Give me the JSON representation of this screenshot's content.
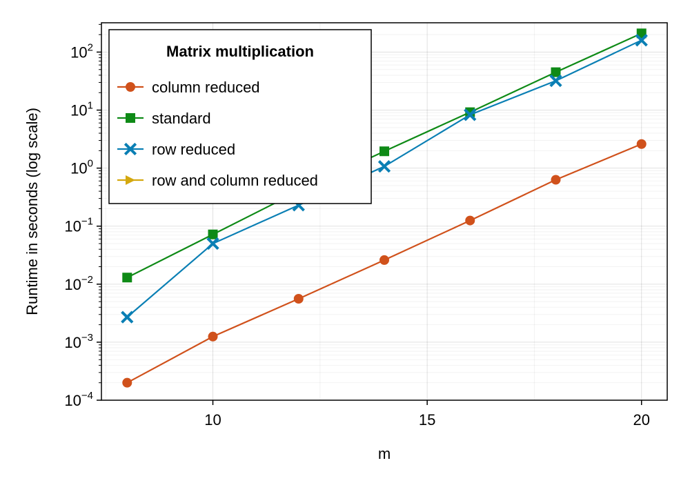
{
  "chart_data": {
    "type": "line",
    "title": "",
    "xlabel": "m",
    "ylabel": "Runtime in seconds (log scale)",
    "xlim": [
      7.4,
      20.6
    ],
    "ylim": [
      0.0001,
      320
    ],
    "yscale": "log",
    "x_ticks": [
      10,
      15,
      20
    ],
    "y_ticks": [
      0.0001,
      0.001,
      0.01,
      0.1,
      1,
      10,
      100
    ],
    "grid": true,
    "legend": {
      "title": "Matrix multiplication",
      "placement": "top-left"
    },
    "series": [
      {
        "name": "column reduced",
        "color": "#d0511b",
        "marker": "circle",
        "x": [
          8,
          10,
          12,
          14,
          16,
          18,
          20
        ],
        "y": [
          0.0002,
          0.00125,
          0.0056,
          0.026,
          0.125,
          0.63,
          2.6
        ]
      },
      {
        "name": "standard",
        "color": "#0e8a16",
        "marker": "square",
        "x": [
          8,
          10,
          12,
          14,
          16,
          18,
          20
        ],
        "y": [
          0.013,
          0.072,
          0.4,
          1.95,
          9.2,
          45,
          210
        ]
      },
      {
        "name": "row reduced",
        "color": "#0a7fb4",
        "marker": "x",
        "x": [
          8,
          10,
          12,
          14,
          16,
          18,
          20
        ],
        "y": [
          0.0027,
          0.05,
          0.23,
          1.07,
          8.3,
          32,
          160
        ]
      },
      {
        "name": "row and column reduced",
        "color": "#d4a80f",
        "marker": "triangle-right",
        "x": [],
        "y": []
      }
    ]
  }
}
